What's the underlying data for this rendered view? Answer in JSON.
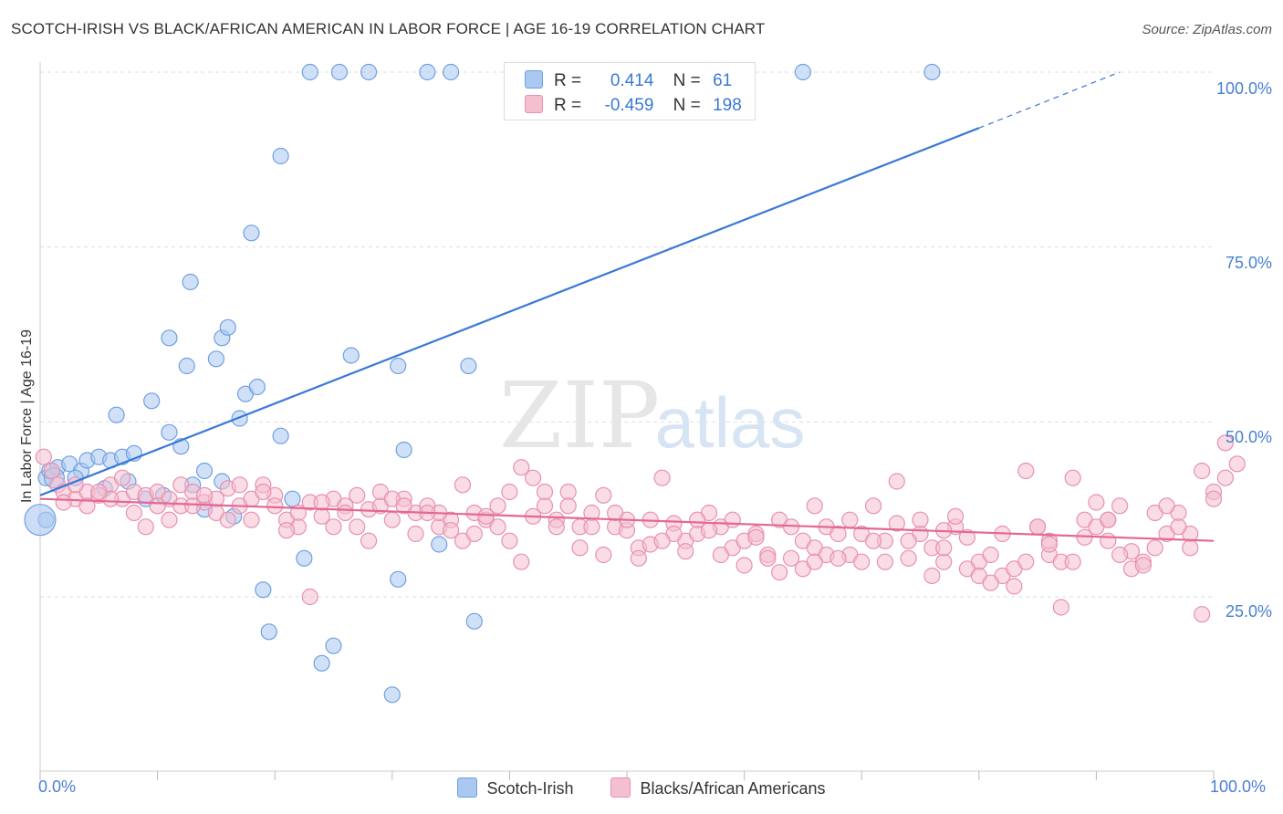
{
  "chart_data": {
    "type": "scatter",
    "title": "SCOTCH-IRISH VS BLACK/AFRICAN AMERICAN IN LABOR FORCE | AGE 16-19 CORRELATION CHART",
    "source": "Source: ZipAtlas.com",
    "ylabel": "In Labor Force | Age 16-19",
    "xlim": [
      0,
      100
    ],
    "ylim": [
      2,
      103
    ],
    "y_ticks": [
      "100.0%",
      "75.0%",
      "50.0%",
      "25.0%"
    ],
    "x_ticks": [
      "0.0%",
      "100.0%"
    ],
    "grid": true,
    "watermark": {
      "zip": "ZIP",
      "atlas": "atlas"
    },
    "legend": {
      "rows": [
        {
          "r_label": "R =",
          "r_value": "0.414",
          "n_label": "N =",
          "n_value": "61"
        },
        {
          "r_label": "R =",
          "r_value": "-0.459",
          "n_label": "N =",
          "n_value": "198"
        }
      ]
    },
    "series": [
      {
        "name": "Scotch-Irish",
        "color": "#6fa0e0",
        "fill": "#aac8f0",
        "trend": {
          "x0": 0,
          "y0": 39.5,
          "x1": 80,
          "y1": 92,
          "dash_to_x": 92,
          "dash_to_y": 100,
          "color": "#3a78d8"
        },
        "points": [
          [
            0.5,
            42
          ],
          [
            0.8,
            43
          ],
          [
            1.5,
            43.5
          ],
          [
            2.5,
            44
          ],
          [
            3.5,
            43
          ],
          [
            4,
            44.5
          ],
          [
            5,
            45
          ],
          [
            6,
            44.5
          ],
          [
            7,
            45
          ],
          [
            8,
            45.5
          ],
          [
            3,
            42
          ],
          [
            5.5,
            40.5
          ],
          [
            7.5,
            41.5
          ],
          [
            9,
            39
          ],
          [
            10.5,
            39.5
          ],
          [
            13,
            41
          ],
          [
            14,
            37.5
          ],
          [
            11,
            48.5
          ],
          [
            12,
            46.5
          ],
          [
            14,
            43
          ],
          [
            15.5,
            41.5
          ],
          [
            16.5,
            36.5
          ],
          [
            6.5,
            51
          ],
          [
            9.5,
            53
          ],
          [
            11,
            62
          ],
          [
            12.5,
            58
          ],
          [
            12.8,
            70
          ],
          [
            15,
            59
          ],
          [
            15.5,
            62
          ],
          [
            16,
            63.5
          ],
          [
            17,
            50.5
          ],
          [
            17.5,
            54
          ],
          [
            18.5,
            55
          ],
          [
            18,
            77
          ],
          [
            20.5,
            88
          ],
          [
            20.5,
            48
          ],
          [
            21.5,
            39
          ],
          [
            23,
            100
          ],
          [
            25.5,
            100
          ],
          [
            28,
            100
          ],
          [
            33,
            100
          ],
          [
            35,
            100
          ],
          [
            65,
            100
          ],
          [
            76,
            100
          ],
          [
            26.5,
            59.5
          ],
          [
            30.5,
            58
          ],
          [
            31,
            46
          ],
          [
            36.5,
            58
          ],
          [
            22.5,
            30.5
          ],
          [
            19,
            26
          ],
          [
            19.5,
            20
          ],
          [
            25,
            18
          ],
          [
            24,
            15.5
          ],
          [
            30.5,
            27.5
          ],
          [
            30,
            11
          ],
          [
            34,
            32.5
          ],
          [
            37,
            21.5
          ],
          [
            0.5,
            36
          ]
        ],
        "big_points": [
          [
            0,
            36
          ],
          [
            1.2,
            42
          ]
        ]
      },
      {
        "name": "Blacks/African Americans",
        "color": "#e890b0",
        "fill": "#f4c0d0",
        "trend": {
          "x0": 0,
          "y0": 39,
          "x1": 100,
          "y1": 33,
          "color": "#e36892"
        },
        "points": [
          [
            0.3,
            45
          ],
          [
            1,
            43
          ],
          [
            1.5,
            41
          ],
          [
            2,
            40
          ],
          [
            3,
            39
          ],
          [
            4,
            40
          ],
          [
            5,
            39.5
          ],
          [
            6,
            41
          ],
          [
            7,
            39
          ],
          [
            8,
            40
          ],
          [
            9,
            39.5
          ],
          [
            10,
            40
          ],
          [
            11,
            39
          ],
          [
            12,
            41
          ],
          [
            13,
            40
          ],
          [
            14,
            38.5
          ],
          [
            15,
            39
          ],
          [
            16,
            40.5
          ],
          [
            17,
            38
          ],
          [
            18,
            39
          ],
          [
            19,
            41
          ],
          [
            20,
            39.5
          ],
          [
            21,
            36
          ],
          [
            22,
            37
          ],
          [
            23,
            38.5
          ],
          [
            24,
            36.5
          ],
          [
            25,
            39
          ],
          [
            26,
            38
          ],
          [
            27,
            35
          ],
          [
            28,
            37.5
          ],
          [
            29,
            38
          ],
          [
            30,
            36
          ],
          [
            31,
            39
          ],
          [
            32,
            37
          ],
          [
            33,
            38
          ],
          [
            34,
            35
          ],
          [
            35,
            36
          ],
          [
            36,
            41
          ],
          [
            37,
            37
          ],
          [
            38,
            36
          ],
          [
            39,
            35
          ],
          [
            40,
            40
          ],
          [
            41,
            43.5
          ],
          [
            42,
            42
          ],
          [
            43,
            38
          ],
          [
            44,
            36
          ],
          [
            45,
            40
          ],
          [
            46,
            35
          ],
          [
            47,
            37
          ],
          [
            48,
            39.5
          ],
          [
            49,
            35
          ],
          [
            50,
            34.5
          ],
          [
            51,
            32
          ],
          [
            52,
            36
          ],
          [
            53,
            42
          ],
          [
            54,
            35.5
          ],
          [
            55,
            33
          ],
          [
            56,
            34
          ],
          [
            57,
            37
          ],
          [
            58,
            35
          ],
          [
            59,
            32
          ],
          [
            60,
            33
          ],
          [
            61,
            34
          ],
          [
            62,
            31
          ],
          [
            63,
            36
          ],
          [
            64,
            30.5
          ],
          [
            65,
            33
          ],
          [
            66,
            32
          ],
          [
            67,
            35
          ],
          [
            68,
            34
          ],
          [
            69,
            31
          ],
          [
            70,
            30
          ],
          [
            71,
            38
          ],
          [
            72,
            33
          ],
          [
            73,
            41.5
          ],
          [
            74,
            30.5
          ],
          [
            75,
            34
          ],
          [
            76,
            32
          ],
          [
            77,
            30
          ],
          [
            78,
            35
          ],
          [
            79,
            33.5
          ],
          [
            80,
            30
          ],
          [
            81,
            31
          ],
          [
            82,
            28
          ],
          [
            83,
            29
          ],
          [
            84,
            43
          ],
          [
            85,
            35
          ],
          [
            86,
            31
          ],
          [
            87,
            30
          ],
          [
            88,
            42
          ],
          [
            89,
            33.5
          ],
          [
            90,
            38.5
          ],
          [
            91,
            36
          ],
          [
            92,
            38
          ],
          [
            93,
            31.5
          ],
          [
            94,
            30
          ],
          [
            95,
            37
          ],
          [
            96,
            34
          ],
          [
            97,
            37
          ],
          [
            98,
            34
          ],
          [
            99,
            43
          ],
          [
            100,
            40
          ],
          [
            101,
            47
          ],
          [
            2,
            38.5
          ],
          [
            4,
            38
          ],
          [
            6,
            39
          ],
          [
            8,
            37
          ],
          [
            9,
            35
          ],
          [
            11,
            36
          ],
          [
            12,
            38
          ],
          [
            14,
            39.5
          ],
          [
            15,
            37
          ],
          [
            17,
            41
          ],
          [
            18,
            36
          ],
          [
            20,
            38
          ],
          [
            22,
            35
          ],
          [
            23,
            25
          ],
          [
            24,
            38.5
          ],
          [
            26,
            37
          ],
          [
            28,
            33
          ],
          [
            29,
            40
          ],
          [
            30,
            39
          ],
          [
            32,
            34
          ],
          [
            34,
            37
          ],
          [
            35,
            34.5
          ],
          [
            36,
            33
          ],
          [
            38,
            36.5
          ],
          [
            39,
            38
          ],
          [
            40,
            33
          ],
          [
            41,
            30
          ],
          [
            42,
            36.5
          ],
          [
            44,
            35
          ],
          [
            46,
            32
          ],
          [
            47,
            35
          ],
          [
            48,
            31
          ],
          [
            50,
            36
          ],
          [
            51,
            30.5
          ],
          [
            52,
            32.5
          ],
          [
            54,
            34
          ],
          [
            55,
            31.5
          ],
          [
            56,
            36
          ],
          [
            57,
            34.5
          ],
          [
            58,
            31
          ],
          [
            60,
            29.5
          ],
          [
            61,
            33.5
          ],
          [
            62,
            30.5
          ],
          [
            63,
            28.5
          ],
          [
            64,
            35
          ],
          [
            65,
            29
          ],
          [
            66,
            38
          ],
          [
            67,
            31
          ],
          [
            68,
            30.5
          ],
          [
            69,
            36
          ],
          [
            70,
            34
          ],
          [
            72,
            30
          ],
          [
            73,
            35.5
          ],
          [
            74,
            33
          ],
          [
            75,
            36
          ],
          [
            76,
            28
          ],
          [
            77,
            32
          ],
          [
            78,
            36.5
          ],
          [
            79,
            29
          ],
          [
            80,
            28
          ],
          [
            81,
            27
          ],
          [
            82,
            34
          ],
          [
            83,
            26.5
          ],
          [
            84,
            30
          ],
          [
            85,
            35
          ],
          [
            86,
            33
          ],
          [
            87,
            23.5
          ],
          [
            88,
            30
          ],
          [
            89,
            36
          ],
          [
            90,
            35
          ],
          [
            91,
            33
          ],
          [
            92,
            31
          ],
          [
            93,
            29
          ],
          [
            94,
            29.5
          ],
          [
            95,
            32
          ],
          [
            96,
            38
          ],
          [
            97,
            35
          ],
          [
            98,
            32
          ],
          [
            99,
            22.5
          ],
          [
            100,
            39
          ],
          [
            101,
            42
          ],
          [
            102,
            44
          ],
          [
            3,
            41
          ],
          [
            5,
            40
          ],
          [
            7,
            42
          ],
          [
            10,
            38
          ],
          [
            13,
            38
          ],
          [
            16,
            36
          ],
          [
            19,
            40
          ],
          [
            21,
            34.5
          ],
          [
            25,
            35
          ],
          [
            27,
            39.5
          ],
          [
            31,
            38
          ],
          [
            33,
            37
          ],
          [
            37,
            34
          ],
          [
            43,
            40
          ],
          [
            45,
            38
          ],
          [
            49,
            37
          ],
          [
            53,
            33
          ],
          [
            59,
            36
          ],
          [
            66,
            30
          ],
          [
            71,
            33
          ],
          [
            77,
            34.5
          ],
          [
            86,
            32.5
          ],
          [
            91,
            36
          ]
        ]
      }
    ]
  }
}
